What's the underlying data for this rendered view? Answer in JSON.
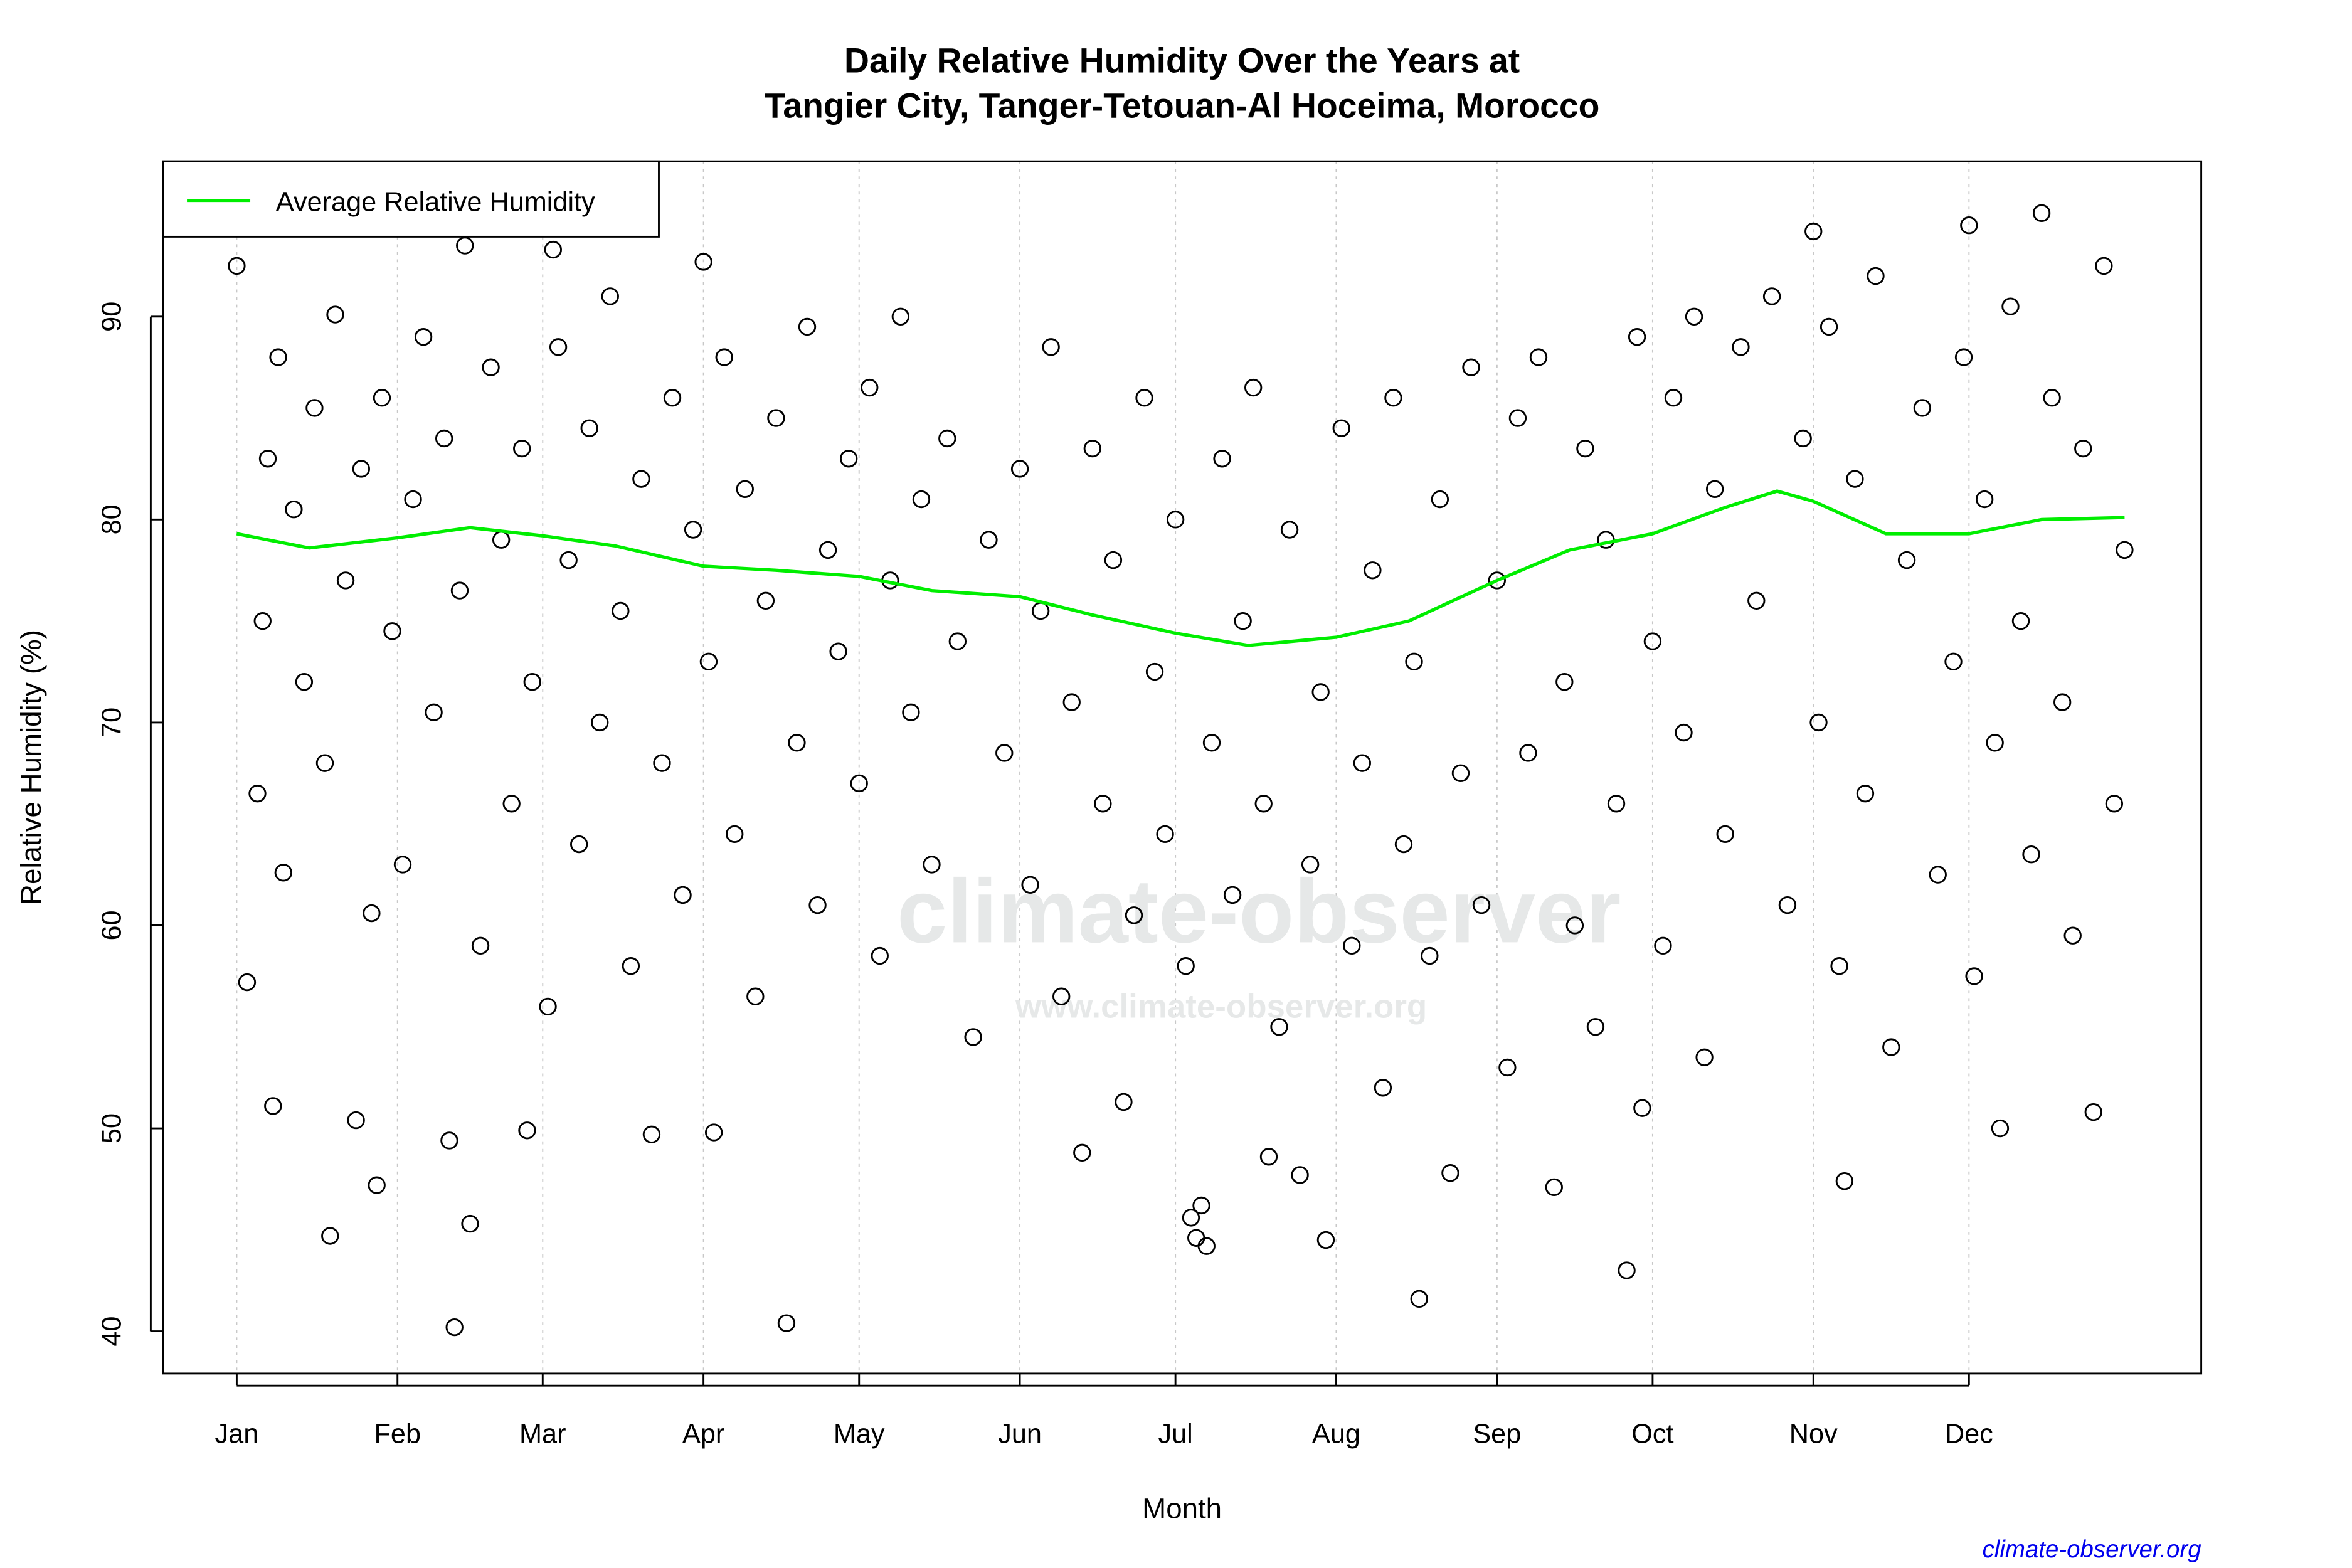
{
  "chart_data": {
    "type": "scatter",
    "title_lines": [
      "Daily Relative Humidity Over the Years at",
      "Tangier City, Tanger-Tetouan-Al Hoceima, Morocco"
    ],
    "xlabel": "Month",
    "ylabel": "Relative Humidity  (%)",
    "x_ticks": [
      {
        "date": "01-01",
        "label": "Jan"
      },
      {
        "date": "02-01",
        "label": "Feb"
      },
      {
        "date": "03-01",
        "label": "Mar"
      },
      {
        "date": "04-01",
        "label": "Apr"
      },
      {
        "date": "05-01",
        "label": "May"
      },
      {
        "date": "06-01",
        "label": "Jun"
      },
      {
        "date": "07-01",
        "label": "Jul"
      },
      {
        "date": "08-01",
        "label": "Aug"
      },
      {
        "date": "09-01",
        "label": "Sep"
      },
      {
        "date": "10-01",
        "label": "Oct"
      },
      {
        "date": "11-01",
        "label": "Nov"
      },
      {
        "date": "12-01",
        "label": "Dec"
      }
    ],
    "y_ticks": [
      40,
      50,
      60,
      70,
      80,
      90
    ],
    "ylim": [
      37.9,
      97.7
    ],
    "grid": "vertical dotted lines at month starts",
    "legend": {
      "position": "top-left",
      "entries": [
        {
          "label": "Average Relative Humidity",
          "color": "#00ee00"
        }
      ]
    },
    "colors": {
      "points": "#000000",
      "average": "#00ee00",
      "credit": "#0000ee"
    },
    "average_line": [
      [
        "01-01",
        79.3
      ],
      [
        "01-15",
        78.6
      ],
      [
        "02-01",
        79.1
      ],
      [
        "02-15",
        79.6
      ],
      [
        "03-01",
        79.2
      ],
      [
        "03-15",
        78.7
      ],
      [
        "04-01",
        77.7
      ],
      [
        "04-15",
        77.5
      ],
      [
        "05-01",
        77.2
      ],
      [
        "05-15",
        76.5
      ],
      [
        "06-01",
        76.2
      ],
      [
        "06-15",
        75.3
      ],
      [
        "07-01",
        74.4
      ],
      [
        "07-15",
        73.8
      ],
      [
        "08-01",
        74.2
      ],
      [
        "08-15",
        75.0
      ],
      [
        "09-01",
        77.0
      ],
      [
        "09-15",
        78.5
      ],
      [
        "10-01",
        79.3
      ],
      [
        "10-15",
        80.6
      ],
      [
        "10-25",
        81.4
      ],
      [
        "11-01",
        80.9
      ],
      [
        "11-15",
        79.3
      ],
      [
        "12-01",
        79.3
      ],
      [
        "12-15",
        80.0
      ],
      [
        "12-31",
        80.1
      ]
    ],
    "points": [
      [
        "02-12",
        40.2
      ],
      [
        "04-17",
        40.4
      ],
      [
        "01-19",
        44.7
      ],
      [
        "02-15",
        45.3
      ],
      [
        "01-28",
        47.2
      ],
      [
        "07-04",
        45.6
      ],
      [
        "07-06",
        46.2
      ],
      [
        "07-07",
        44.2
      ],
      [
        "07-05",
        44.6
      ],
      [
        "07-30",
        44.5
      ],
      [
        "08-17",
        41.6
      ],
      [
        "09-12",
        47.1
      ],
      [
        "09-26",
        43.0
      ],
      [
        "11-07",
        47.4
      ],
      [
        "07-25",
        47.7
      ],
      [
        "08-23",
        47.8
      ],
      [
        "12-25",
        50.8
      ],
      [
        "12-07",
        50.0
      ],
      [
        "02-26",
        49.9
      ],
      [
        "03-22",
        49.7
      ],
      [
        "04-03",
        49.8
      ],
      [
        "06-13",
        48.8
      ],
      [
        "02-11",
        49.4
      ],
      [
        "01-24",
        50.4
      ],
      [
        "01-08",
        51.1
      ],
      [
        "06-21",
        51.3
      ],
      [
        "09-29",
        51.0
      ],
      [
        "07-19",
        48.6
      ],
      [
        "02-14",
        93.5
      ],
      [
        "12-15",
        95.1
      ],
      [
        "11-01",
        94.2
      ],
      [
        "12-01",
        94.5
      ],
      [
        "01-01",
        92.5
      ],
      [
        "03-03",
        93.3
      ],
      [
        "04-01",
        92.7
      ],
      [
        "01-03",
        57.2
      ],
      [
        "01-05",
        66.5
      ],
      [
        "01-06",
        75.0
      ],
      [
        "01-07",
        83.0
      ],
      [
        "01-09",
        88.0
      ],
      [
        "01-10",
        62.6
      ],
      [
        "01-12",
        80.5
      ],
      [
        "01-14",
        72.0
      ],
      [
        "01-16",
        85.5
      ],
      [
        "01-18",
        68.0
      ],
      [
        "01-20",
        90.1
      ],
      [
        "01-22",
        77.0
      ],
      [
        "01-25",
        82.5
      ],
      [
        "01-27",
        60.6
      ],
      [
        "01-29",
        86.0
      ],
      [
        "01-31",
        74.5
      ],
      [
        "02-02",
        63.0
      ],
      [
        "02-04",
        81.0
      ],
      [
        "02-06",
        89.0
      ],
      [
        "02-08",
        70.5
      ],
      [
        "02-10",
        84.0
      ],
      [
        "02-13",
        76.5
      ],
      [
        "02-17",
        59.0
      ],
      [
        "02-19",
        87.5
      ],
      [
        "02-21",
        79.0
      ],
      [
        "02-23",
        66.0
      ],
      [
        "02-25",
        83.5
      ],
      [
        "02-27",
        72.0
      ],
      [
        "03-02",
        56.0
      ],
      [
        "03-04",
        88.5
      ],
      [
        "03-06",
        78.0
      ],
      [
        "03-08",
        64.0
      ],
      [
        "03-10",
        84.5
      ],
      [
        "03-12",
        70.0
      ],
      [
        "03-14",
        91.0
      ],
      [
        "03-16",
        75.5
      ],
      [
        "03-18",
        58.0
      ],
      [
        "03-20",
        82.0
      ],
      [
        "03-24",
        68.0
      ],
      [
        "03-26",
        86.0
      ],
      [
        "03-28",
        61.5
      ],
      [
        "03-30",
        79.5
      ],
      [
        "04-02",
        73.0
      ],
      [
        "04-05",
        88.0
      ],
      [
        "04-07",
        64.5
      ],
      [
        "04-09",
        81.5
      ],
      [
        "04-11",
        56.5
      ],
      [
        "04-13",
        76.0
      ],
      [
        "04-15",
        85.0
      ],
      [
        "04-19",
        69.0
      ],
      [
        "04-21",
        89.5
      ],
      [
        "04-23",
        61.0
      ],
      [
        "04-25",
        78.5
      ],
      [
        "04-27",
        73.5
      ],
      [
        "04-29",
        83.0
      ],
      [
        "05-01",
        67.0
      ],
      [
        "05-03",
        86.5
      ],
      [
        "05-05",
        58.5
      ],
      [
        "05-07",
        77.0
      ],
      [
        "05-09",
        90.0
      ],
      [
        "05-11",
        70.5
      ],
      [
        "05-13",
        81.0
      ],
      [
        "05-15",
        63.0
      ],
      [
        "05-18",
        84.0
      ],
      [
        "05-20",
        74.0
      ],
      [
        "05-23",
        54.5
      ],
      [
        "05-26",
        79.0
      ],
      [
        "05-29",
        68.5
      ],
      [
        "06-01",
        82.5
      ],
      [
        "06-03",
        62.0
      ],
      [
        "06-05",
        75.5
      ],
      [
        "06-07",
        88.5
      ],
      [
        "06-09",
        56.5
      ],
      [
        "06-11",
        71.0
      ],
      [
        "06-15",
        83.5
      ],
      [
        "06-17",
        66.0
      ],
      [
        "06-19",
        78.0
      ],
      [
        "06-23",
        60.5
      ],
      [
        "06-25",
        86.0
      ],
      [
        "06-27",
        72.5
      ],
      [
        "06-29",
        64.5
      ],
      [
        "07-01",
        80.0
      ],
      [
        "07-03",
        58.0
      ],
      [
        "07-08",
        69.0
      ],
      [
        "07-10",
        83.0
      ],
      [
        "07-12",
        61.5
      ],
      [
        "07-14",
        75.0
      ],
      [
        "07-16",
        86.5
      ],
      [
        "07-18",
        66.0
      ],
      [
        "07-21",
        55.0
      ],
      [
        "07-23",
        79.5
      ],
      [
        "07-27",
        63.0
      ],
      [
        "07-29",
        71.5
      ],
      [
        "08-02",
        84.5
      ],
      [
        "08-04",
        59.0
      ],
      [
        "08-06",
        68.0
      ],
      [
        "08-08",
        77.5
      ],
      [
        "08-10",
        52.0
      ],
      [
        "08-12",
        86.0
      ],
      [
        "08-14",
        64.0
      ],
      [
        "08-16",
        73.0
      ],
      [
        "08-19",
        58.5
      ],
      [
        "08-21",
        81.0
      ],
      [
        "08-25",
        67.5
      ],
      [
        "08-27",
        87.5
      ],
      [
        "08-29",
        61.0
      ],
      [
        "09-01",
        77.0
      ],
      [
        "09-03",
        53.0
      ],
      [
        "09-05",
        85.0
      ],
      [
        "09-07",
        68.5
      ],
      [
        "09-09",
        88.0
      ],
      [
        "09-14",
        72.0
      ],
      [
        "09-16",
        60.0
      ],
      [
        "09-18",
        83.5
      ],
      [
        "09-20",
        55.0
      ],
      [
        "09-22",
        79.0
      ],
      [
        "09-24",
        66.0
      ],
      [
        "09-28",
        89.0
      ],
      [
        "10-01",
        74.0
      ],
      [
        "10-03",
        59.0
      ],
      [
        "10-05",
        86.0
      ],
      [
        "10-07",
        69.5
      ],
      [
        "10-09",
        90.0
      ],
      [
        "10-11",
        53.5
      ],
      [
        "10-13",
        81.5
      ],
      [
        "10-15",
        64.5
      ],
      [
        "10-18",
        88.5
      ],
      [
        "10-21",
        76.0
      ],
      [
        "10-24",
        91.0
      ],
      [
        "10-27",
        61.0
      ],
      [
        "10-30",
        84.0
      ],
      [
        "11-02",
        70.0
      ],
      [
        "11-04",
        89.5
      ],
      [
        "11-06",
        58.0
      ],
      [
        "11-09",
        82.0
      ],
      [
        "11-11",
        66.5
      ],
      [
        "11-13",
        92.0
      ],
      [
        "11-16",
        54.0
      ],
      [
        "11-19",
        78.0
      ],
      [
        "11-22",
        85.5
      ],
      [
        "11-25",
        62.5
      ],
      [
        "11-28",
        73.0
      ],
      [
        "11-30",
        88.0
      ],
      [
        "12-02",
        57.5
      ],
      [
        "12-04",
        81.0
      ],
      [
        "12-06",
        69.0
      ],
      [
        "12-09",
        90.5
      ],
      [
        "12-11",
        75.0
      ],
      [
        "12-13",
        63.5
      ],
      [
        "12-17",
        86.0
      ],
      [
        "12-19",
        71.0
      ],
      [
        "12-21",
        59.5
      ],
      [
        "12-23",
        83.5
      ],
      [
        "12-27",
        92.5
      ],
      [
        "12-29",
        66.0
      ],
      [
        "12-31",
        78.5
      ]
    ]
  },
  "watermark": {
    "main": "climate-observer",
    "url": "www.climate-observer.org"
  },
  "credit": "climate-observer.org"
}
